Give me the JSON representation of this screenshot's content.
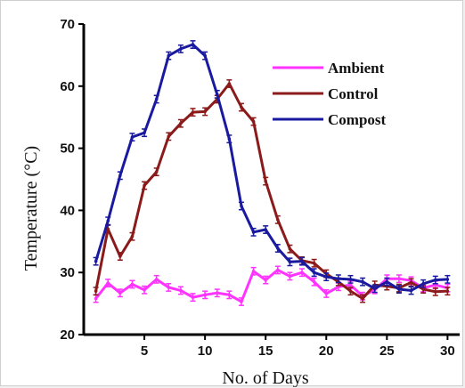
{
  "chart_data": {
    "type": "line",
    "xlabel": "No. of Days",
    "ylabel": "Temperature (°C)",
    "xlim": [
      0,
      31
    ],
    "ylim": [
      20,
      70
    ],
    "xticks": [
      5,
      10,
      15,
      20,
      25,
      30
    ],
    "yticks": [
      20,
      30,
      40,
      50,
      60,
      70
    ],
    "legend": "top-right",
    "grid": false,
    "x": [
      1,
      2,
      3,
      4,
      5,
      6,
      7,
      8,
      9,
      10,
      11,
      12,
      13,
      14,
      15,
      16,
      17,
      18,
      19,
      20,
      21,
      22,
      23,
      24,
      25,
      26,
      27,
      28,
      29,
      30
    ],
    "series": [
      {
        "name": "Ambient",
        "color": "#ff33ff",
        "values": [
          25.8,
          28.3,
          26.7,
          28.1,
          27.2,
          28.9,
          27.6,
          27.1,
          26.0,
          26.4,
          26.7,
          26.4,
          25.3,
          30.2,
          28.8,
          30.4,
          29.4,
          30.0,
          28.5,
          26.6,
          27.7,
          28.0,
          26.2,
          27.2,
          29.0,
          29.0,
          28.7,
          27.5,
          28.0,
          27.5
        ]
      },
      {
        "name": "Control",
        "color": "#8b1a1a",
        "values": [
          27.0,
          37.0,
          32.6,
          35.8,
          44.0,
          46.2,
          51.9,
          54.0,
          55.8,
          55.9,
          57.9,
          60.4,
          56.6,
          54.3,
          44.7,
          38.5,
          33.8,
          31.9,
          31.5,
          29.8,
          28.5,
          27.0,
          25.8,
          28.0,
          27.8,
          27.5,
          28.4,
          27.3,
          26.9,
          27.0
        ]
      },
      {
        "name": "Compost",
        "color": "#1a1aa0",
        "values": [
          31.8,
          38.3,
          45.6,
          51.8,
          52.5,
          57.9,
          64.9,
          66.0,
          66.7,
          64.9,
          58.7,
          51.5,
          40.7,
          36.5,
          36.9,
          33.9,
          31.7,
          31.8,
          30.0,
          29.3,
          29.0,
          28.9,
          28.5,
          27.4,
          28.5,
          27.3,
          27.1,
          28.2,
          28.8,
          28.9
        ]
      }
    ],
    "error_bar": 0.6
  }
}
